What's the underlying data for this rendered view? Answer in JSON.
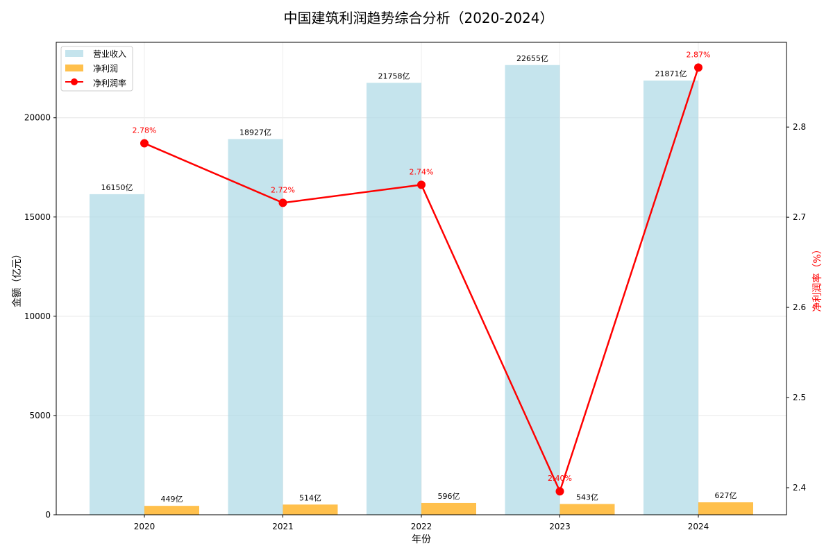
{
  "chart_data": {
    "type": "bar",
    "title": "中国建筑利润趋势综合分析（2020-2024）",
    "xlabel": "年份",
    "ylabel": "金额（亿元）",
    "y2label": "净利润率（%）",
    "categories": [
      "2020",
      "2021",
      "2022",
      "2023",
      "2024"
    ],
    "ylim": [
      0,
      23800
    ],
    "y_ticks": [
      0,
      5000,
      10000,
      15000,
      20000
    ],
    "y2lim": [
      2.37,
      2.894
    ],
    "y2_ticks": [
      2.4,
      2.5,
      2.6,
      2.7,
      2.8
    ],
    "grid": true,
    "legend_position": "top-left",
    "series": [
      {
        "name": "营业收入",
        "type": "bar",
        "axis": "left",
        "color": "#add8e6",
        "values": [
          16150,
          18927,
          21758,
          22655,
          21871
        ],
        "labels": [
          "16150亿",
          "18927亿",
          "21758亿",
          "22655亿",
          "21871亿"
        ]
      },
      {
        "name": "净利润",
        "type": "bar",
        "axis": "left",
        "color": "#ffa500",
        "values": [
          449,
          514,
          596,
          543,
          627
        ],
        "labels": [
          "449亿",
          "514亿",
          "596亿",
          "543亿",
          "627亿"
        ]
      },
      {
        "name": "净利润率",
        "type": "line",
        "axis": "right",
        "color": "#ff0000",
        "values": [
          2.782,
          2.716,
          2.736,
          2.396,
          2.866
        ],
        "labels": [
          "2.78%",
          "2.72%",
          "2.74%",
          "2.40%",
          "2.87%"
        ]
      }
    ]
  }
}
